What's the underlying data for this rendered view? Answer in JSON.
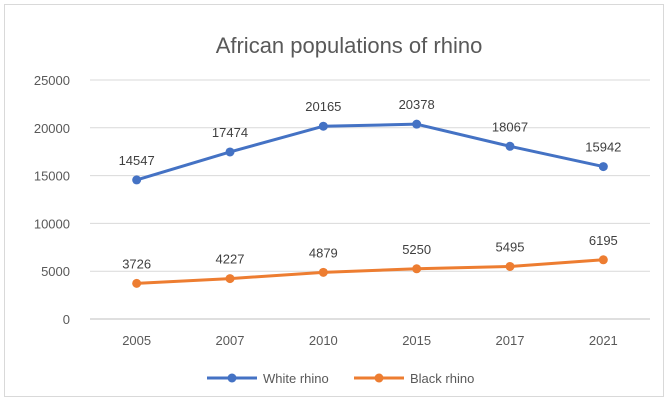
{
  "chart_data": {
    "type": "line",
    "title": "African populations of rhino",
    "xlabel": "",
    "ylabel": "",
    "categories": [
      "2005",
      "2007",
      "2010",
      "2015",
      "2017",
      "2021"
    ],
    "ylim": [
      0,
      25000
    ],
    "yticks": [
      0,
      5000,
      10000,
      15000,
      20000,
      25000
    ],
    "grid": true,
    "legend_position": "bottom",
    "series": [
      {
        "name": "White rhino",
        "color": "#4472C4",
        "values": [
          14547,
          17474,
          20165,
          20378,
          18067,
          15942
        ]
      },
      {
        "name": "Black rhino",
        "color": "#ED7D31",
        "values": [
          3726,
          4227,
          4879,
          5250,
          5495,
          6195
        ]
      }
    ]
  }
}
